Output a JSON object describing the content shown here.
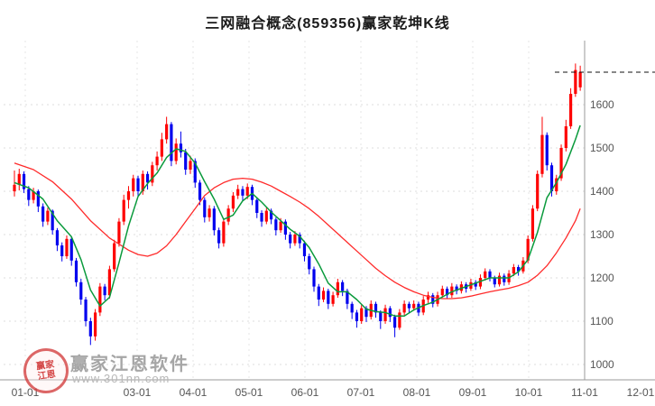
{
  "title": "三网融合概念(859356)赢家乾坤K线",
  "watermark": {
    "brand": "赢家江恩软件",
    "url": "www.301nn.com",
    "seal_line1": "赢家",
    "seal_line2": "江恩"
  },
  "chart_data": {
    "type": "candlestick",
    "title": "三网融合概念(859356)赢家乾坤K线",
    "y_ticks": [
      1000,
      1100,
      1200,
      1300,
      1400,
      1500,
      1600
    ],
    "ylim": [
      970,
      1750
    ],
    "x_ticks": [
      {
        "label": "01-01",
        "m": 0
      },
      {
        "label": "03-01",
        "m": 2
      },
      {
        "label": "04-01",
        "m": 3
      },
      {
        "label": "05-01",
        "m": 4
      },
      {
        "label": "06-01",
        "m": 5
      },
      {
        "label": "07-01",
        "m": 6
      },
      {
        "label": "08-01",
        "m": 7
      },
      {
        "label": "09-01",
        "m": 8
      },
      {
        "label": "10-01",
        "m": 9
      },
      {
        "label": "11-01",
        "m": 10
      },
      {
        "label": "12-01",
        "m": 11
      }
    ],
    "last_price": 1675,
    "colors": {
      "up": "#fe0000",
      "down": "#0000ee",
      "ma_fast": "#0a9a3c",
      "ma_slow": "#ff2a2a",
      "grid": "#dcdcdc",
      "axis": "#9a9a9a",
      "dash_line": "#111111"
    },
    "candles": [
      [
        1400,
        1448,
        1388,
        1415
      ],
      [
        1415,
        1452,
        1402,
        1440
      ],
      [
        1440,
        1446,
        1396,
        1405
      ],
      [
        1405,
        1412,
        1366,
        1380
      ],
      [
        1380,
        1408,
        1372,
        1400
      ],
      [
        1400,
        1404,
        1352,
        1365
      ],
      [
        1365,
        1372,
        1318,
        1330
      ],
      [
        1330,
        1362,
        1322,
        1355
      ],
      [
        1355,
        1358,
        1300,
        1310
      ],
      [
        1310,
        1315,
        1262,
        1275
      ],
      [
        1275,
        1282,
        1238,
        1250
      ],
      [
        1250,
        1298,
        1244,
        1290
      ],
      [
        1290,
        1295,
        1228,
        1240
      ],
      [
        1240,
        1246,
        1180,
        1190
      ],
      [
        1190,
        1198,
        1138,
        1150
      ],
      [
        1150,
        1156,
        1088,
        1100
      ],
      [
        1100,
        1108,
        1045,
        1065
      ],
      [
        1065,
        1128,
        1055,
        1120
      ],
      [
        1120,
        1188,
        1112,
        1180
      ],
      [
        1180,
        1186,
        1148,
        1160
      ],
      [
        1160,
        1228,
        1152,
        1220
      ],
      [
        1220,
        1288,
        1214,
        1280
      ],
      [
        1280,
        1338,
        1272,
        1330
      ],
      [
        1330,
        1392,
        1322,
        1380
      ],
      [
        1380,
        1412,
        1360,
        1400
      ],
      [
        1400,
        1438,
        1388,
        1430
      ],
      [
        1430,
        1436,
        1388,
        1400
      ],
      [
        1400,
        1448,
        1392,
        1440
      ],
      [
        1440,
        1446,
        1404,
        1420
      ],
      [
        1420,
        1468,
        1412,
        1460
      ],
      [
        1460,
        1492,
        1448,
        1480
      ],
      [
        1480,
        1535,
        1470,
        1520
      ],
      [
        1520,
        1572,
        1510,
        1555
      ],
      [
        1555,
        1560,
        1458,
        1470
      ],
      [
        1470,
        1522,
        1462,
        1510
      ],
      [
        1510,
        1538,
        1478,
        1490
      ],
      [
        1490,
        1498,
        1438,
        1450
      ],
      [
        1450,
        1482,
        1440,
        1470
      ],
      [
        1470,
        1476,
        1408,
        1420
      ],
      [
        1420,
        1426,
        1368,
        1380
      ],
      [
        1380,
        1386,
        1328,
        1340
      ],
      [
        1340,
        1368,
        1330,
        1360
      ],
      [
        1360,
        1366,
        1298,
        1310
      ],
      [
        1310,
        1316,
        1268,
        1280
      ],
      [
        1280,
        1338,
        1272,
        1330
      ],
      [
        1330,
        1368,
        1322,
        1360
      ],
      [
        1360,
        1398,
        1352,
        1390
      ],
      [
        1390,
        1415,
        1382,
        1405
      ],
      [
        1405,
        1412,
        1378,
        1390
      ],
      [
        1390,
        1418,
        1382,
        1410
      ],
      [
        1410,
        1415,
        1368,
        1380
      ],
      [
        1380,
        1386,
        1338,
        1350
      ],
      [
        1350,
        1356,
        1318,
        1330
      ],
      [
        1330,
        1362,
        1324,
        1355
      ],
      [
        1355,
        1360,
        1324,
        1335
      ],
      [
        1335,
        1340,
        1298,
        1310
      ],
      [
        1310,
        1338,
        1304,
        1330
      ],
      [
        1330,
        1335,
        1288,
        1300
      ],
      [
        1300,
        1306,
        1268,
        1280
      ],
      [
        1280,
        1308,
        1274,
        1300
      ],
      [
        1300,
        1305,
        1268,
        1280
      ],
      [
        1280,
        1286,
        1238,
        1250
      ],
      [
        1250,
        1256,
        1208,
        1220
      ],
      [
        1220,
        1226,
        1168,
        1180
      ],
      [
        1180,
        1186,
        1135,
        1150
      ],
      [
        1150,
        1178,
        1144,
        1170
      ],
      [
        1170,
        1175,
        1128,
        1140
      ],
      [
        1140,
        1168,
        1134,
        1160
      ],
      [
        1160,
        1198,
        1154,
        1190
      ],
      [
        1190,
        1195,
        1158,
        1170
      ],
      [
        1170,
        1175,
        1128,
        1140
      ],
      [
        1140,
        1145,
        1105,
        1120
      ],
      [
        1120,
        1126,
        1085,
        1100
      ],
      [
        1100,
        1138,
        1094,
        1130
      ],
      [
        1130,
        1135,
        1098,
        1110
      ],
      [
        1110,
        1148,
        1104,
        1140
      ],
      [
        1140,
        1145,
        1108,
        1120
      ],
      [
        1120,
        1125,
        1082,
        1100
      ],
      [
        1100,
        1138,
        1094,
        1130
      ],
      [
        1130,
        1135,
        1098,
        1110
      ],
      [
        1110,
        1115,
        1063,
        1085
      ],
      [
        1085,
        1128,
        1080,
        1120
      ],
      [
        1120,
        1148,
        1114,
        1140
      ],
      [
        1140,
        1145,
        1118,
        1130
      ],
      [
        1130,
        1148,
        1124,
        1140
      ],
      [
        1140,
        1145,
        1112,
        1120
      ],
      [
        1120,
        1158,
        1114,
        1150
      ],
      [
        1150,
        1168,
        1142,
        1160
      ],
      [
        1160,
        1165,
        1132,
        1140
      ],
      [
        1140,
        1168,
        1134,
        1160
      ],
      [
        1160,
        1182,
        1154,
        1175
      ],
      [
        1175,
        1180,
        1152,
        1160
      ],
      [
        1160,
        1188,
        1154,
        1180
      ],
      [
        1180,
        1185,
        1162,
        1170
      ],
      [
        1170,
        1192,
        1164,
        1185
      ],
      [
        1185,
        1190,
        1166,
        1175
      ],
      [
        1175,
        1198,
        1170,
        1190
      ],
      [
        1190,
        1195,
        1172,
        1180
      ],
      [
        1180,
        1208,
        1174,
        1200
      ],
      [
        1200,
        1222,
        1194,
        1215
      ],
      [
        1215,
        1220,
        1192,
        1200
      ],
      [
        1200,
        1205,
        1178,
        1185
      ],
      [
        1185,
        1212,
        1180,
        1205
      ],
      [
        1205,
        1210,
        1182,
        1190
      ],
      [
        1190,
        1218,
        1184,
        1210
      ],
      [
        1210,
        1232,
        1204,
        1225
      ],
      [
        1225,
        1230,
        1205,
        1215
      ],
      [
        1215,
        1248,
        1210,
        1240
      ],
      [
        1240,
        1298,
        1234,
        1290
      ],
      [
        1290,
        1368,
        1284,
        1360
      ],
      [
        1360,
        1448,
        1354,
        1440
      ],
      [
        1440,
        1572,
        1432,
        1530
      ],
      [
        1530,
        1536,
        1448,
        1460
      ],
      [
        1460,
        1466,
        1388,
        1400
      ],
      [
        1400,
        1438,
        1392,
        1430
      ],
      [
        1430,
        1508,
        1424,
        1500
      ],
      [
        1500,
        1565,
        1492,
        1550
      ],
      [
        1550,
        1638,
        1544,
        1625
      ],
      [
        1625,
        1695,
        1618,
        1680
      ],
      [
        1640,
        1690,
        1632,
        1675
      ]
    ],
    "ma_fast": [
      [
        0,
        1420
      ],
      [
        3,
        1408
      ],
      [
        6,
        1382
      ],
      [
        9,
        1332
      ],
      [
        12,
        1295
      ],
      [
        14,
        1242
      ],
      [
        16,
        1172
      ],
      [
        18,
        1135
      ],
      [
        20,
        1155
      ],
      [
        22,
        1235
      ],
      [
        24,
        1320
      ],
      [
        26,
        1388
      ],
      [
        28,
        1418
      ],
      [
        30,
        1442
      ],
      [
        32,
        1478
      ],
      [
        34,
        1498
      ],
      [
        36,
        1492
      ],
      [
        38,
        1465
      ],
      [
        40,
        1422
      ],
      [
        42,
        1382
      ],
      [
        44,
        1335
      ],
      [
        46,
        1345
      ],
      [
        48,
        1378
      ],
      [
        50,
        1395
      ],
      [
        52,
        1375
      ],
      [
        54,
        1352
      ],
      [
        56,
        1332
      ],
      [
        58,
        1312
      ],
      [
        60,
        1296
      ],
      [
        62,
        1270
      ],
      [
        64,
        1232
      ],
      [
        66,
        1188
      ],
      [
        68,
        1168
      ],
      [
        70,
        1168
      ],
      [
        72,
        1150
      ],
      [
        74,
        1128
      ],
      [
        76,
        1122
      ],
      [
        78,
        1120
      ],
      [
        80,
        1112
      ],
      [
        82,
        1112
      ],
      [
        84,
        1126
      ],
      [
        86,
        1136
      ],
      [
        88,
        1144
      ],
      [
        90,
        1156
      ],
      [
        92,
        1168
      ],
      [
        94,
        1176
      ],
      [
        96,
        1184
      ],
      [
        98,
        1192
      ],
      [
        100,
        1200
      ],
      [
        102,
        1200
      ],
      [
        104,
        1200
      ],
      [
        106,
        1214
      ],
      [
        108,
        1242
      ],
      [
        110,
        1305
      ],
      [
        112,
        1385
      ],
      [
        114,
        1420
      ],
      [
        116,
        1462
      ],
      [
        118,
        1520
      ],
      [
        119,
        1552
      ]
    ],
    "ma_slow": [
      [
        0,
        1465
      ],
      [
        4,
        1450
      ],
      [
        8,
        1422
      ],
      [
        12,
        1382
      ],
      [
        16,
        1332
      ],
      [
        20,
        1292
      ],
      [
        24,
        1264
      ],
      [
        26,
        1254
      ],
      [
        28,
        1250
      ],
      [
        30,
        1257
      ],
      [
        32,
        1274
      ],
      [
        34,
        1300
      ],
      [
        36,
        1330
      ],
      [
        38,
        1360
      ],
      [
        40,
        1390
      ],
      [
        42,
        1408
      ],
      [
        44,
        1420
      ],
      [
        46,
        1428
      ],
      [
        48,
        1430
      ],
      [
        50,
        1428
      ],
      [
        52,
        1421
      ],
      [
        54,
        1412
      ],
      [
        56,
        1400
      ],
      [
        58,
        1388
      ],
      [
        60,
        1375
      ],
      [
        62,
        1360
      ],
      [
        64,
        1342
      ],
      [
        66,
        1322
      ],
      [
        68,
        1302
      ],
      [
        70,
        1282
      ],
      [
        72,
        1262
      ],
      [
        74,
        1242
      ],
      [
        76,
        1222
      ],
      [
        78,
        1205
      ],
      [
        80,
        1190
      ],
      [
        82,
        1178
      ],
      [
        84,
        1168
      ],
      [
        86,
        1160
      ],
      [
        88,
        1155
      ],
      [
        90,
        1152
      ],
      [
        92,
        1152
      ],
      [
        94,
        1154
      ],
      [
        96,
        1158
      ],
      [
        98,
        1163
      ],
      [
        100,
        1168
      ],
      [
        102,
        1172
      ],
      [
        104,
        1176
      ],
      [
        106,
        1182
      ],
      [
        108,
        1190
      ],
      [
        110,
        1206
      ],
      [
        112,
        1228
      ],
      [
        114,
        1258
      ],
      [
        116,
        1292
      ],
      [
        118,
        1332
      ],
      [
        119,
        1360
      ]
    ]
  }
}
